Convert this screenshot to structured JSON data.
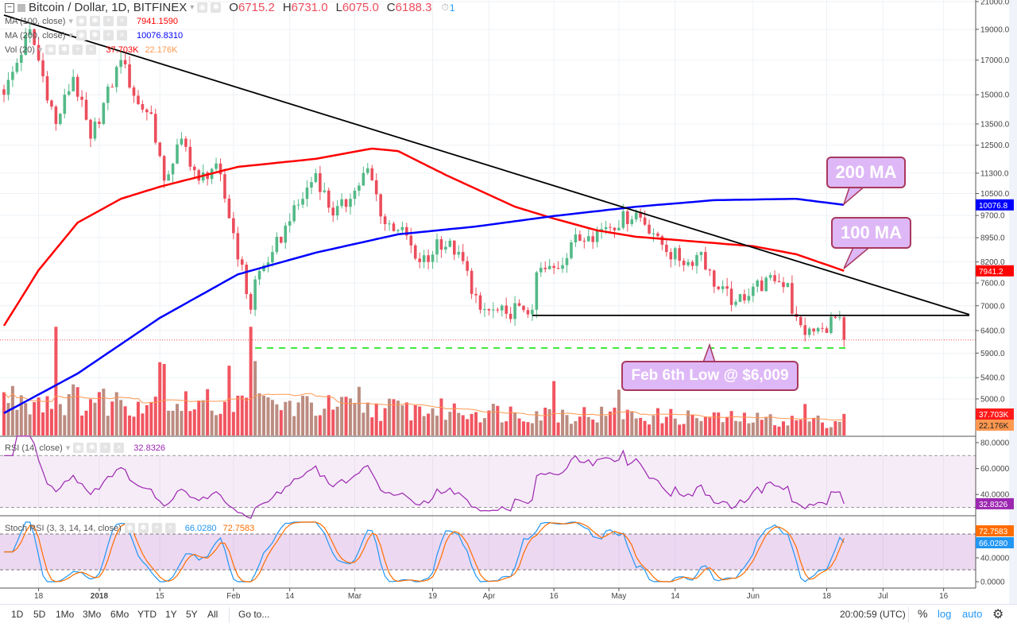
{
  "header": {
    "symbol": "Bitcoin / Dollar, 1D, BITFINEX",
    "o_label": "O",
    "o": "6715.2",
    "h_label": "H",
    "h": "6731.0",
    "l_label": "L",
    "l": "6075.0",
    "c_label": "C",
    "c": "6188.3",
    "alerts": "1"
  },
  "indicators": {
    "ma100": {
      "label": "MA (100, close)",
      "value": "7941.1590"
    },
    "ma200": {
      "label": "MA (200, close)",
      "value": "10076.8310"
    },
    "vol": {
      "label": "Vol (20)",
      "value": "37.703K",
      "ma_value": "22.176K"
    },
    "rsi": {
      "label": "RSI (14, close)",
      "value": "32.8326"
    },
    "stoch": {
      "label": "Stoch RSI (3, 3, 14, 14, close)",
      "k": "66.0280",
      "d": "72.7583"
    }
  },
  "annotations": {
    "ma200": "200 MA",
    "ma100": "100 MA",
    "feb_low": "Feb 6th Low @ $6,009"
  },
  "colors": {
    "up": "#53b987",
    "down": "#eb4d5c",
    "ma100": "#ff0000",
    "ma200": "#0000ff",
    "rsi": "#9c27b0",
    "stoch_k": "#2196f3",
    "stoch_d": "#ff6d00"
  },
  "bottom": {
    "ranges": [
      "1D",
      "5D",
      "1Mo",
      "3Mo",
      "6Mo",
      "YTD",
      "1Y",
      "5Y",
      "All"
    ],
    "goto": "Go to...",
    "time": "20:00:59 (UTC)",
    "percent": "%",
    "log": "log",
    "auto": "auto"
  },
  "chart_data": {
    "type": "candlestick",
    "title": "Bitcoin / Dollar, 1D, BITFINEX",
    "start_date": "2017-12-10",
    "scale": "log",
    "price_ticks": [
      "21000.0",
      "19000.0",
      "17000.0",
      "15000.0",
      "13500.0",
      "12500.0",
      "11300.0",
      "10500.0",
      "9700.0",
      "8950.0",
      "8200.0",
      "7600.0",
      "7000.0",
      "6400.0",
      "5900.0",
      "5400.0",
      "5000.0"
    ],
    "price_tick_values": [
      21000,
      19000,
      17000,
      15000,
      13500,
      12500,
      11300,
      10500,
      9700,
      8950,
      8200,
      7600,
      7000,
      6400,
      5900,
      5400,
      5000
    ],
    "x_ticks": [
      {
        "label": "18",
        "day": 8
      },
      {
        "label": "2018",
        "day": 22
      },
      {
        "label": "15",
        "day": 36
      },
      {
        "label": "Feb",
        "day": 53
      },
      {
        "label": "14",
        "day": 66
      },
      {
        "label": "Mar",
        "day": 81
      },
      {
        "label": "19",
        "day": 99
      },
      {
        "label": "Apr",
        "day": 112
      },
      {
        "label": "16",
        "day": 127
      },
      {
        "label": "May",
        "day": 142
      },
      {
        "label": "14",
        "day": 155
      },
      {
        "label": "Jun",
        "day": 173
      },
      {
        "label": "18",
        "day": 190
      },
      {
        "label": "Jul",
        "day": 203
      },
      {
        "label": "16",
        "day": 217
      }
    ],
    "close_waypoints": [
      [
        0,
        15000
      ],
      [
        6,
        19000
      ],
      [
        12,
        13500
      ],
      [
        16,
        16000
      ],
      [
        20,
        12800
      ],
      [
        27,
        17000
      ],
      [
        31,
        14500
      ],
      [
        34,
        14000
      ],
      [
        37,
        11000
      ],
      [
        41,
        12800
      ],
      [
        45,
        11000
      ],
      [
        49,
        11700
      ],
      [
        53,
        9100
      ],
      [
        57,
        6900
      ],
      [
        58,
        7700
      ],
      [
        62,
        8500
      ],
      [
        66,
        9500
      ],
      [
        72,
        11300
      ],
      [
        76,
        9700
      ],
      [
        80,
        10300
      ],
      [
        84,
        11500
      ],
      [
        88,
        9400
      ],
      [
        92,
        9300
      ],
      [
        95,
        8300
      ],
      [
        98,
        8200
      ],
      [
        100,
        8900
      ],
      [
        105,
        8500
      ],
      [
        110,
        6900
      ],
      [
        116,
        6800
      ],
      [
        119,
        7000
      ],
      [
        122,
        6900
      ],
      [
        123,
        7900
      ],
      [
        128,
        8000
      ],
      [
        131,
        8800
      ],
      [
        135,
        9000
      ],
      [
        139,
        9300
      ],
      [
        146,
        9800
      ],
      [
        151,
        9000
      ],
      [
        153,
        8500
      ],
      [
        158,
        8200
      ],
      [
        161,
        8500
      ],
      [
        164,
        7500
      ],
      [
        169,
        7100
      ],
      [
        173,
        7500
      ],
      [
        178,
        7650
      ],
      [
        181,
        7600
      ],
      [
        182,
        6800
      ],
      [
        185,
        6300
      ],
      [
        189,
        6450
      ],
      [
        192,
        6700
      ],
      [
        193,
        6715
      ],
      [
        194,
        6188
      ]
    ],
    "ma100_series": [
      [
        0,
        6512
      ],
      [
        8,
        7960
      ],
      [
        17,
        9450
      ],
      [
        27,
        10300
      ],
      [
        36,
        10760
      ],
      [
        54,
        11560
      ],
      [
        72,
        11900
      ],
      [
        85,
        12350
      ],
      [
        91,
        12240
      ],
      [
        102,
        11230
      ],
      [
        118,
        10010
      ],
      [
        127,
        9590
      ],
      [
        137,
        9190
      ],
      [
        146,
        8980
      ],
      [
        155,
        8880
      ],
      [
        173,
        8680
      ],
      [
        183,
        8430
      ],
      [
        194,
        7941
      ]
    ],
    "ma200_series": [
      [
        0,
        4750
      ],
      [
        17,
        5480
      ],
      [
        36,
        6700
      ],
      [
        54,
        7840
      ],
      [
        72,
        8480
      ],
      [
        91,
        9060
      ],
      [
        109,
        9320
      ],
      [
        127,
        9680
      ],
      [
        146,
        10010
      ],
      [
        164,
        10250
      ],
      [
        183,
        10300
      ],
      [
        194,
        10077
      ]
    ],
    "trendlines": [
      {
        "name": "descending-resistance",
        "from": [
          0,
          20000
        ],
        "to": [
          223,
          6780
        ]
      },
      {
        "name": "horizontal-support",
        "from": [
          122,
          6760
        ],
        "to": [
          223,
          6760
        ]
      },
      {
        "name": "feb-low-support",
        "from": [
          58,
          6009
        ],
        "to": [
          195,
          6009
        ],
        "style": "dashed"
      }
    ],
    "last_price": 6188.3,
    "volume": {
      "last": 37.703,
      "ma_last": 22.176,
      "unit": "K",
      "spikes": [
        [
          12,
          190
        ],
        [
          36,
          128
        ],
        [
          37,
          125
        ],
        [
          52,
          122
        ],
        [
          57,
          190
        ],
        [
          58,
          130
        ],
        [
          82,
          85
        ],
        [
          127,
          95
        ],
        [
          142,
          80
        ],
        [
          185,
          55
        ]
      ]
    },
    "rsi_ticks": [
      "80.0000",
      "60.0000",
      "40.0000"
    ],
    "stoch_ticks": [
      "40.0000",
      "0.0000"
    ],
    "rsi_band": [
      30,
      70
    ],
    "stoch_band": [
      20,
      80
    ]
  }
}
